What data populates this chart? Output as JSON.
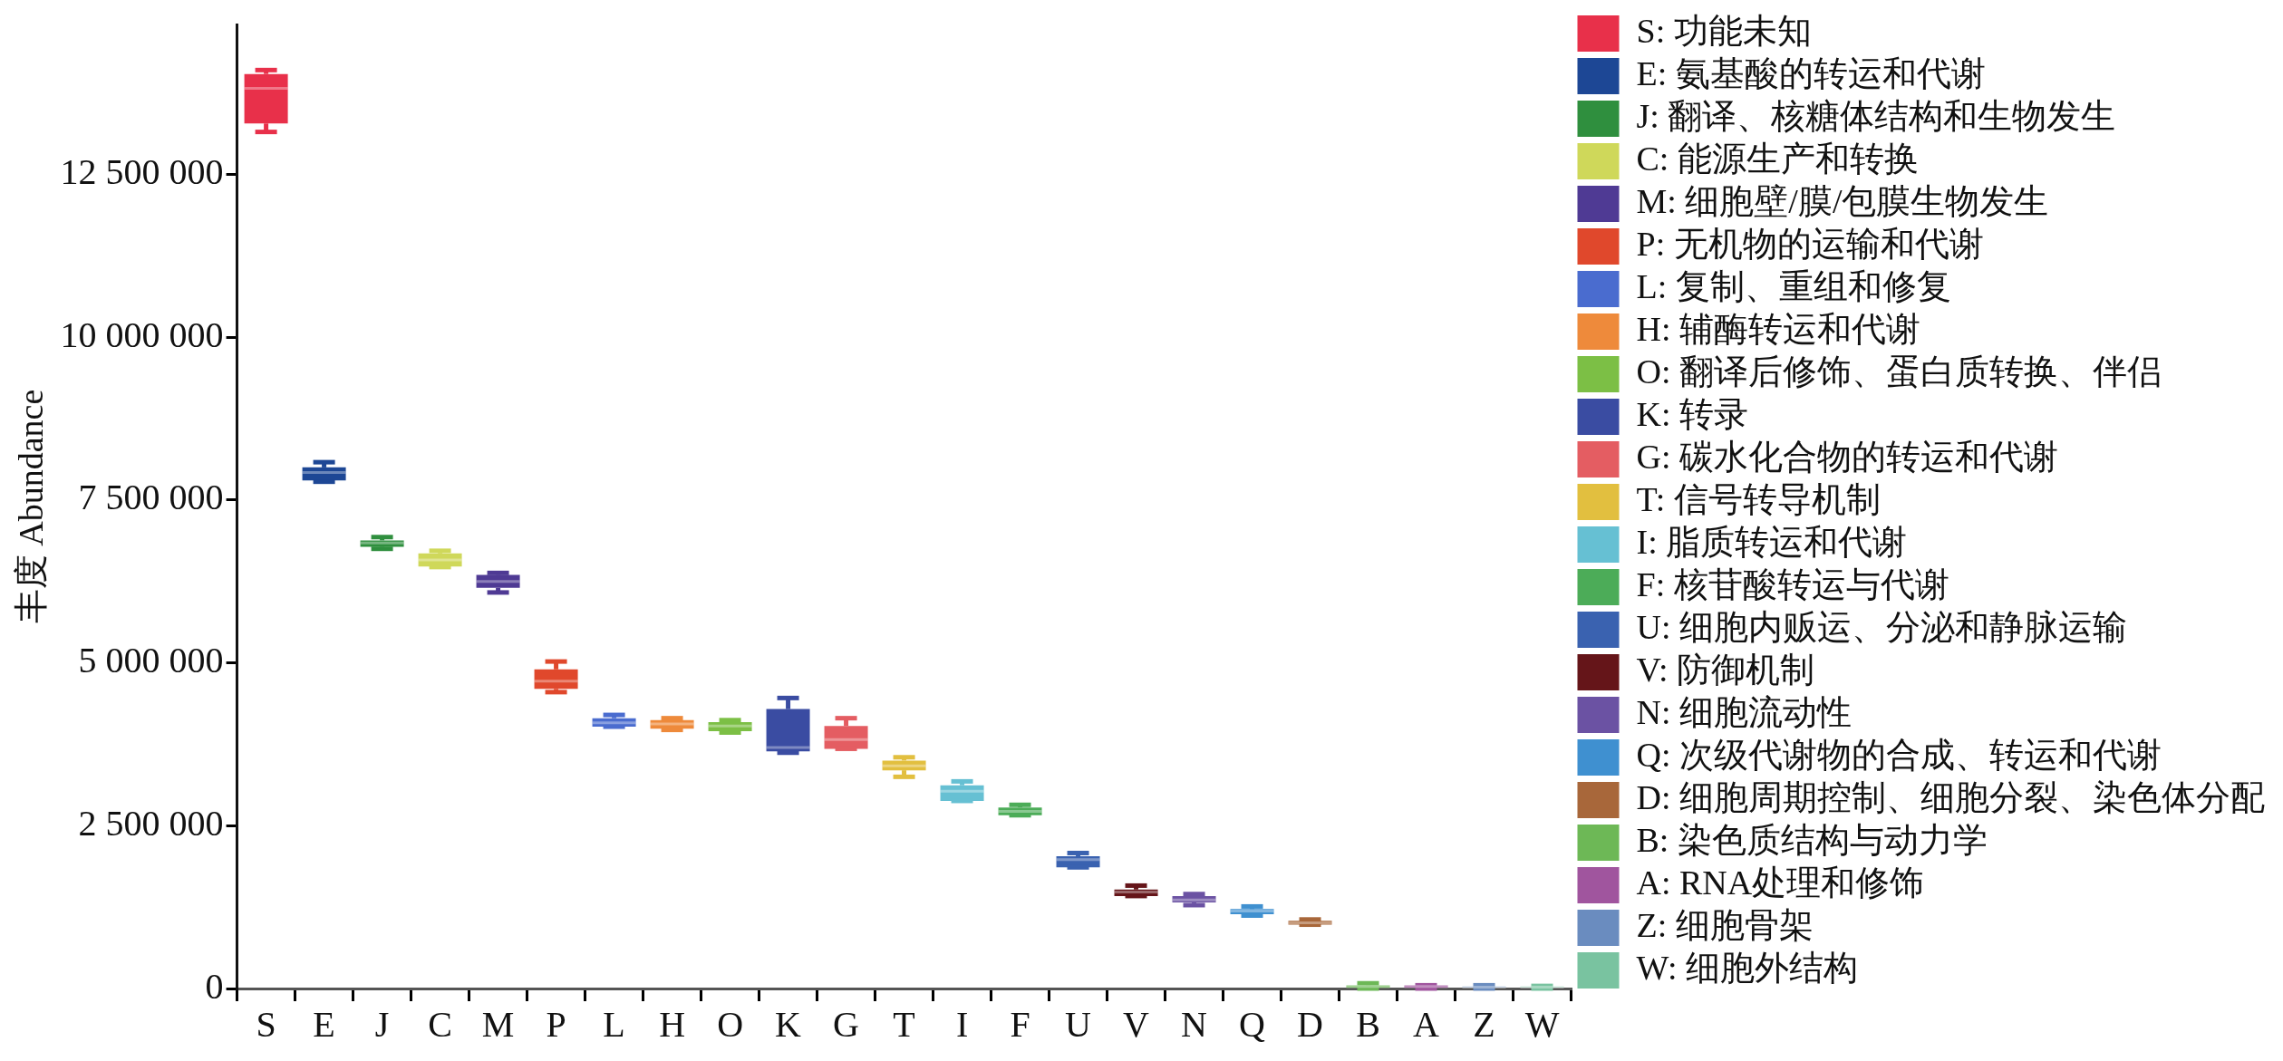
{
  "chart_data": {
    "type": "box",
    "ylabel": "丰度 Abundance",
    "categories": [
      "S",
      "E",
      "J",
      "C",
      "M",
      "P",
      "L",
      "H",
      "O",
      "K",
      "G",
      "T",
      "I",
      "F",
      "U",
      "V",
      "N",
      "Q",
      "D",
      "B",
      "A",
      "Z",
      "W"
    ],
    "ylim": [
      0,
      14800000
    ],
    "yticks": [
      0,
      {
        "value": 2500000,
        "label": "2 500 000"
      },
      {
        "value": 5000000,
        "label": "5 000 000"
      },
      {
        "value": 7500000,
        "label": "7 500 000"
      },
      {
        "value": 10000000,
        "label": "10 000 000"
      },
      {
        "value": 12500000,
        "label": "12 500 000"
      }
    ],
    "legend": "right",
    "grid": false,
    "series": [
      {
        "name": "S: 功能未知",
        "color": "#e8304a",
        "x": [
          "S"
        ],
        "boxes": [
          {
            "low": 13150000,
            "q1": 13280000,
            "median": 13820000,
            "q3": 14040000,
            "high": 14100000
          }
        ]
      },
      {
        "name": "E: 氨基酸的转运和代谢",
        "color": "#1d4795",
        "x": [
          "E"
        ],
        "boxes": [
          {
            "low": 7780000,
            "q1": 7800000,
            "median": 7920000,
            "q3": 8000000,
            "high": 8080000
          }
        ]
      },
      {
        "name": "J: 翻译、核糖体结构和生物发生",
        "color": "#2f8f3e",
        "x": [
          "J"
        ],
        "boxes": [
          {
            "low": 6750000,
            "q1": 6780000,
            "median": 6840000,
            "q3": 6880000,
            "high": 6930000
          }
        ]
      },
      {
        "name": "C: 能源生产和转换",
        "color": "#cfd85a",
        "x": [
          "C"
        ],
        "boxes": [
          {
            "low": 6470000,
            "q1": 6480000,
            "median": 6580000,
            "q3": 6680000,
            "high": 6720000
          }
        ]
      },
      {
        "name": "M: 细胞壁/膜/包膜生物发生",
        "color": "#4f3a94",
        "x": [
          "M"
        ],
        "boxes": [
          {
            "low": 6080000,
            "q1": 6150000,
            "median": 6250000,
            "q3": 6350000,
            "high": 6380000
          }
        ]
      },
      {
        "name": "P: 无机物的运输和代谢",
        "color": "#e0482c",
        "x": [
          "P"
        ],
        "boxes": [
          {
            "low": 4550000,
            "q1": 4600000,
            "median": 4720000,
            "q3": 4900000,
            "high": 5020000
          }
        ]
      },
      {
        "name": "L: 复制、重组和修复",
        "color": "#4a6ccf",
        "x": [
          "L"
        ],
        "boxes": [
          {
            "low": 4020000,
            "q1": 4020000,
            "median": 4080000,
            "q3": 4150000,
            "high": 4200000
          }
        ]
      },
      {
        "name": "H: 辅酶转运和代谢",
        "color": "#ee8a3b",
        "x": [
          "H"
        ],
        "boxes": [
          {
            "low": 3970000,
            "q1": 3990000,
            "median": 4060000,
            "q3": 4120000,
            "high": 4150000
          }
        ]
      },
      {
        "name": "O: 翻译后修饰、蛋白质转换、伴侣",
        "color": "#7cbf45",
        "x": [
          "O"
        ],
        "boxes": [
          {
            "low": 3930000,
            "q1": 3950000,
            "median": 4030000,
            "q3": 4090000,
            "high": 4120000
          }
        ]
      },
      {
        "name": "K: 转录",
        "color": "#3a4ca2",
        "x": [
          "K"
        ],
        "boxes": [
          {
            "low": 3620000,
            "q1": 3640000,
            "median": 3700000,
            "q3": 4290000,
            "high": 4460000
          }
        ]
      },
      {
        "name": "G: 碳水化合物的转运和代谢",
        "color": "#e45d62",
        "x": [
          "G"
        ],
        "boxes": [
          {
            "low": 3680000,
            "q1": 3680000,
            "median": 3820000,
            "q3": 4030000,
            "high": 4150000
          }
        ]
      },
      {
        "name": "T: 信号转导机制",
        "color": "#e2bf3f",
        "x": [
          "T"
        ],
        "boxes": [
          {
            "low": 3250000,
            "q1": 3350000,
            "median": 3420000,
            "q3": 3500000,
            "high": 3550000
          }
        ]
      },
      {
        "name": "I: 脂质转运和代谢",
        "color": "#66c0d3",
        "x": [
          "I"
        ],
        "boxes": [
          {
            "low": 2880000,
            "q1": 2880000,
            "median": 3030000,
            "q3": 3120000,
            "high": 3180000
          }
        ]
      },
      {
        "name": "F: 核苷酸转运与代谢",
        "color": "#4cac58",
        "x": [
          "F"
        ],
        "boxes": [
          {
            "low": 2660000,
            "q1": 2660000,
            "median": 2720000,
            "q3": 2780000,
            "high": 2820000
          }
        ]
      },
      {
        "name": "U: 细胞内贩运、分泌和静脉运输",
        "color": "#3a62b0",
        "x": [
          "U"
        ],
        "boxes": [
          {
            "low": 1860000,
            "q1": 1860000,
            "median": 1980000,
            "q3": 2030000,
            "high": 2080000
          }
        ]
      },
      {
        "name": "V: 防御机制",
        "color": "#651519",
        "x": [
          "V"
        ],
        "boxes": [
          {
            "low": 1420000,
            "q1": 1420000,
            "median": 1480000,
            "q3": 1520000,
            "high": 1580000
          }
        ]
      },
      {
        "name": "N: 细胞流动性",
        "color": "#6b52a3",
        "x": [
          "N"
        ],
        "boxes": [
          {
            "low": 1280000,
            "q1": 1320000,
            "median": 1360000,
            "q3": 1420000,
            "high": 1450000
          }
        ]
      },
      {
        "name": "Q: 次级代谢物的合成、转运和代谢",
        "color": "#3f90d0",
        "x": [
          "Q"
        ],
        "boxes": [
          {
            "low": 1120000,
            "q1": 1140000,
            "median": 1190000,
            "q3": 1220000,
            "high": 1260000
          }
        ]
      },
      {
        "name": "D: 细胞周期控制、细胞分裂、染色体分配",
        "color": "#a8673a",
        "x": [
          "D"
        ],
        "boxes": [
          {
            "low": 980000,
            "q1": 980000,
            "median": 1010000,
            "q3": 1040000,
            "high": 1060000
          }
        ]
      },
      {
        "name": "B: 染色质结构与动力学",
        "color": "#6db856",
        "x": [
          "B"
        ],
        "boxes": [
          {
            "low": 0,
            "q1": 10000,
            "median": 30000,
            "q3": 50000,
            "high": 80000
          }
        ]
      },
      {
        "name": "A: RNA处理和修饰",
        "color": "#a0559e",
        "x": [
          "A"
        ],
        "boxes": [
          {
            "low": 0,
            "q1": 10000,
            "median": 30000,
            "q3": 50000,
            "high": 50000
          }
        ]
      },
      {
        "name": "Z: 细胞骨架",
        "color": "#6a8cbf",
        "x": [
          "Z"
        ],
        "boxes": [
          {
            "low": 0,
            "q1": 0,
            "median": 20000,
            "q3": 30000,
            "high": 50000
          }
        ]
      },
      {
        "name": "W: 细胞外结构",
        "color": "#79c3a0",
        "x": [
          "W"
        ],
        "boxes": [
          {
            "low": 0,
            "q1": 0,
            "median": 20000,
            "q3": 30000,
            "high": 40000
          }
        ]
      }
    ]
  }
}
